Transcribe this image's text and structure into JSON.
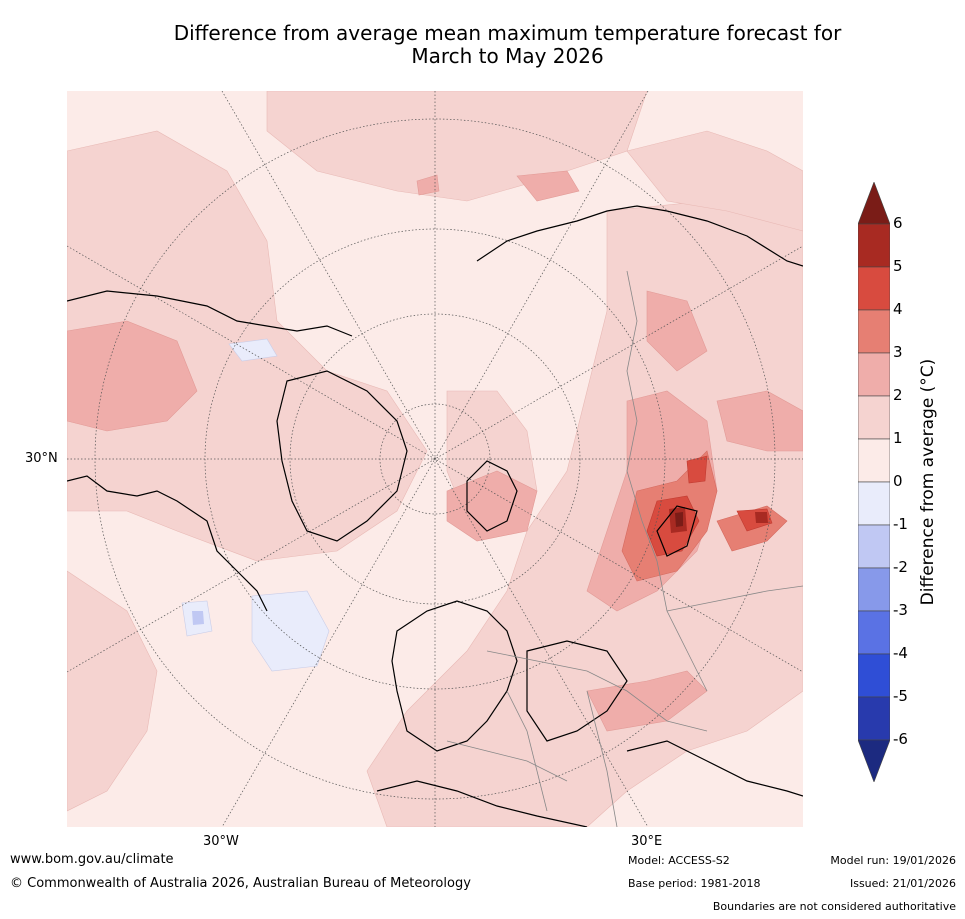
{
  "title": {
    "line1": "Difference from average mean maximum temperature forecast for",
    "line2": "March to May 2026"
  },
  "map": {
    "projection": "north polar stereographic",
    "latitude_labels": [
      "30°N"
    ],
    "longitude_labels": [
      "30°W",
      "30°E"
    ]
  },
  "colorbar": {
    "title": "Difference from average (°C)",
    "ticks": [
      "6",
      "5",
      "4",
      "3",
      "2",
      "1",
      "0",
      "-1",
      "-2",
      "-3",
      "-4",
      "-5",
      "-6"
    ],
    "bins": [
      {
        "range": ">6",
        "color": "#7a1c17"
      },
      {
        "range": "5 to 6",
        "color": "#a82a22"
      },
      {
        "range": "4 to 5",
        "color": "#d84b3f"
      },
      {
        "range": "3 to 4",
        "color": "#e67f73"
      },
      {
        "range": "2 to 3",
        "color": "#efadaa"
      },
      {
        "range": "1 to 2",
        "color": "#f5d3d0"
      },
      {
        "range": "0 to 1",
        "color": "#fcebe8"
      },
      {
        "range": "-1 to 0",
        "color": "#e9ecfb"
      },
      {
        "range": "-2 to -1",
        "color": "#c0c8f3"
      },
      {
        "range": "-3 to -2",
        "color": "#8799ea"
      },
      {
        "range": "-4 to -3",
        "color": "#5a72e4"
      },
      {
        "range": "-5 to -4",
        "color": "#2f4ed6"
      },
      {
        "range": "-6 to -5",
        "color": "#283aad"
      },
      {
        "range": "<-6",
        "color": "#1c2a80"
      }
    ]
  },
  "footer": {
    "website": "www.bom.gov.au/climate",
    "copyright": "© Commonwealth of Australia 2026, Australian Bureau of Meteorology",
    "model": "Model: ACCESS-S2",
    "base_period": "Base period: 1981-2018",
    "model_run": "Model run: 19/01/2026",
    "issued": "Issued: 21/01/2026",
    "disclaimer": "Boundaries are not considered authoritative"
  }
}
